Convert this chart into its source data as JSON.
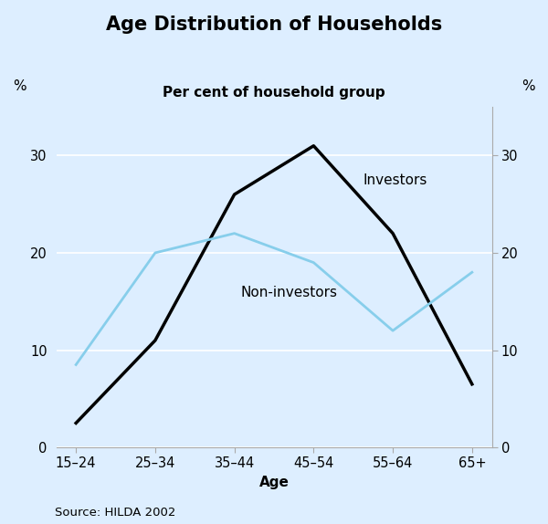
{
  "title": "Age Distribution of Households",
  "subtitle": "Per cent of household group",
  "xlabel": "Age",
  "ylabel_left": "%",
  "ylabel_right": "%",
  "source": "Source: HILDA 2002",
  "categories": [
    "15–24",
    "25–34",
    "35–44",
    "45–54",
    "55–64",
    "65+"
  ],
  "investors": [
    2.5,
    11.0,
    26.0,
    31.0,
    22.0,
    6.5
  ],
  "non_investors": [
    8.5,
    20.0,
    22.0,
    19.0,
    12.0,
    18.0
  ],
  "investor_color": "#000000",
  "non_investor_color": "#87CEEB",
  "background_color": "#ddeeff",
  "plot_bg_color": "#ddeeff",
  "ylim": [
    0,
    35
  ],
  "yticks": [
    0,
    10,
    20,
    30
  ],
  "investor_label": "Investors",
  "non_investor_label": "Non-investors",
  "investor_linewidth": 2.5,
  "non_investor_linewidth": 2.0,
  "title_fontsize": 15,
  "subtitle_fontsize": 11,
  "label_fontsize": 11,
  "tick_fontsize": 10.5,
  "source_fontsize": 9.5,
  "annotation_fontsize": 11,
  "grid_color": "#ffffff",
  "spine_color": "#aaaaaa"
}
